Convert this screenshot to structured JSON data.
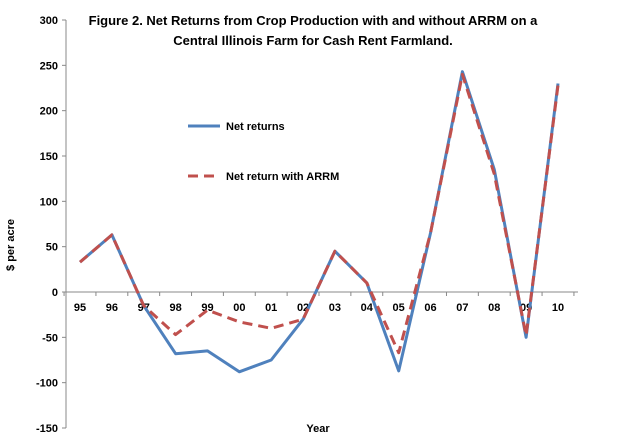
{
  "chart_data": {
    "type": "line",
    "title_line1": "Figure 2.  Net Returns from Crop Production with and without ARRM on a",
    "title_line2": "Central Illinois Farm for Cash Rent Farmland.",
    "xlabel": "Year",
    "ylabel": "$ per acre",
    "ylim": [
      -150,
      300
    ],
    "yticks": [
      -150,
      -100,
      -50,
      0,
      50,
      100,
      150,
      200,
      250,
      300
    ],
    "grid": false,
    "legend_position": "upper-left-center",
    "categories": [
      "95",
      "96",
      "97",
      "98",
      "99",
      "00",
      "01",
      "02",
      "03",
      "04",
      "05",
      "06",
      "07",
      "08",
      "09",
      "10"
    ],
    "series": [
      {
        "name": "Net returns",
        "color": "#4f81bd",
        "dash": "solid",
        "values": [
          33,
          63,
          -15,
          -68,
          -65,
          -88,
          -75,
          -30,
          45,
          10,
          -87,
          65,
          243,
          135,
          -50,
          230
        ]
      },
      {
        "name": "Net return with ARRM",
        "color": "#c0504d",
        "dash": "dashed",
        "values": [
          33,
          63,
          -15,
          -47,
          -20,
          -33,
          -40,
          -30,
          45,
          10,
          -67,
          65,
          240,
          130,
          -48,
          228
        ]
      }
    ]
  }
}
